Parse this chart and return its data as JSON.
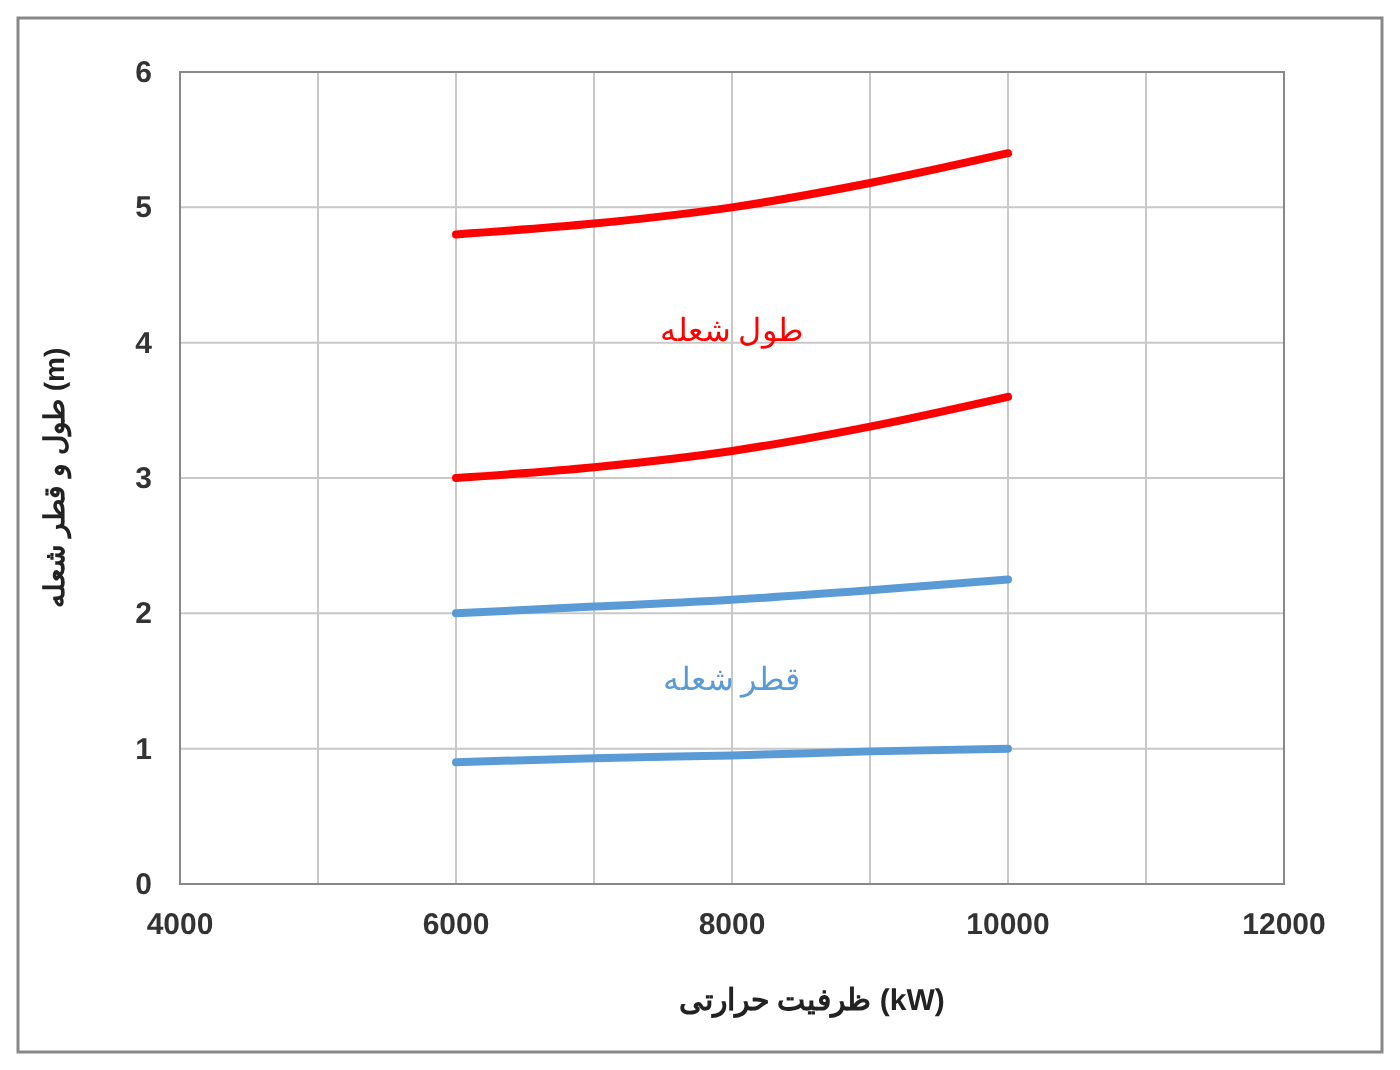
{
  "chart_data": {
    "type": "line",
    "xlabel": "ظرفیت حرارتی (kW)",
    "ylabel": "طول و قطر شعله (m)",
    "x": [
      6000,
      7000,
      8000,
      9000,
      10000
    ],
    "series": [
      {
        "color": "#ff0000",
        "values": [
          4.8,
          4.88,
          5.0,
          5.18,
          5.4
        ]
      },
      {
        "name": "طول شعله",
        "color": "#ff0000",
        "values": [
          3.0,
          3.08,
          3.2,
          3.38,
          3.6
        ]
      },
      {
        "color": "#5b9bd5",
        "values": [
          2.0,
          2.05,
          2.1,
          2.17,
          2.25
        ]
      },
      {
        "name": "قطر شعله",
        "color": "#5b9bd5",
        "values": [
          0.9,
          0.93,
          0.95,
          0.98,
          1.0
        ]
      }
    ],
    "xlim": [
      4000,
      12000
    ],
    "xticks": [
      4000,
      {
        "value": 5000,
        "label": null
      },
      6000,
      {
        "value": 7000,
        "label": null
      },
      8000,
      {
        "value": 9000,
        "label": null
      },
      10000,
      {
        "value": 11000,
        "label": null
      },
      12000
    ],
    "ylim": [
      0,
      6
    ],
    "yticks": [
      0,
      1,
      2,
      3,
      4,
      5,
      6
    ],
    "grid": true,
    "marker": "none",
    "line_style": "solid"
  }
}
